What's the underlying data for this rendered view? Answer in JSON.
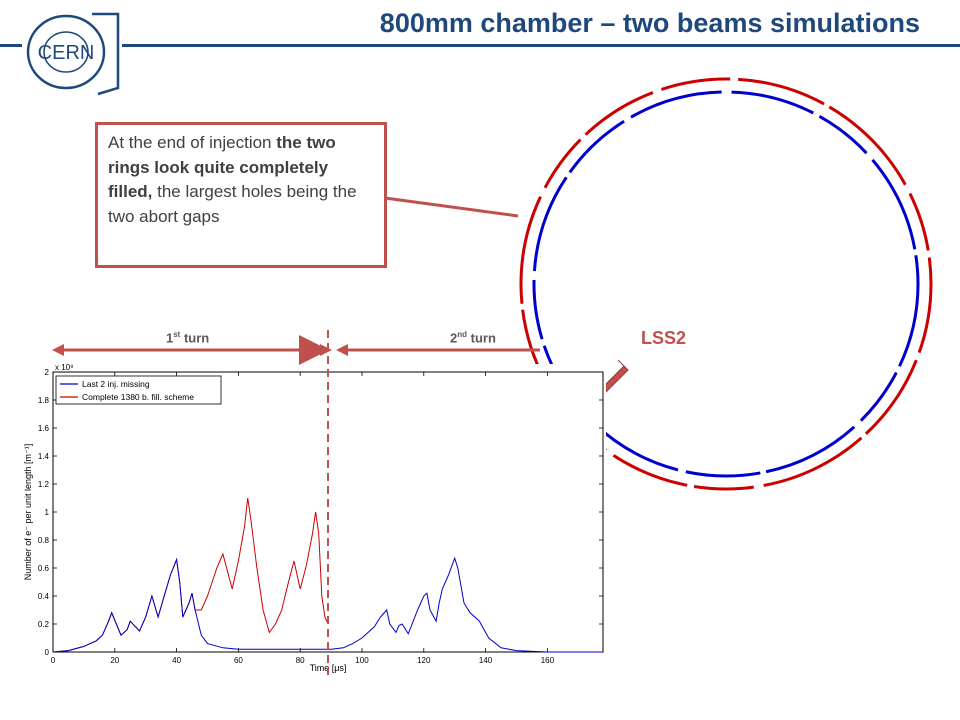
{
  "slide": {
    "title": "800mm chamber – two beams simulations",
    "logo_text": "CERN"
  },
  "callout": {
    "part1": "At the end of injection ",
    "part2": "the two rings look quite completely filled,",
    "part3": " the largest holes being the two abort gaps"
  },
  "annotations": {
    "turn1": "1",
    "turn1_sup": "st",
    "turn1_rest": " turn",
    "turn2": "2",
    "turn2_sup": "nd",
    "turn2_rest": " turn",
    "lss2": "LSS2"
  },
  "colors": {
    "title": "#1F497D",
    "accent_red": "#C0504D",
    "series_blue": "#0000CC",
    "series_red": "#CC0000"
  },
  "chart_data": {
    "type": "line",
    "xlabel": "Time [μs]",
    "ylabel": "Number of e⁻ per unit length [m⁻¹]",
    "y_multiplier": "x 10⁹",
    "xlim": [
      0,
      178
    ],
    "ylim": [
      0,
      2
    ],
    "x_ticks": [
      0,
      20,
      40,
      60,
      80,
      100,
      120,
      140,
      160
    ],
    "y_ticks": [
      0,
      0.2,
      0.4,
      0.6,
      0.8,
      1,
      1.2,
      1.4,
      1.6,
      1.8,
      2
    ],
    "legend_position": "top-left",
    "turn_boundary_x": 89,
    "series": [
      {
        "name": "Last 2 inj. missing",
        "color": "#0000CC",
        "x": [
          0,
          5,
          10,
          14,
          16,
          18,
          19,
          22,
          24,
          25,
          28,
          30,
          32,
          34,
          36,
          38,
          40,
          41,
          42,
          44,
          45,
          46,
          48,
          50,
          55,
          60,
          70,
          80,
          85,
          90,
          94,
          97,
          100,
          104,
          106,
          108,
          109,
          111,
          112,
          113,
          115,
          118,
          120,
          121,
          122,
          124,
          125,
          126,
          128,
          130,
          131,
          133,
          135,
          138,
          141,
          145,
          150,
          160,
          170,
          178
        ],
        "y": [
          0,
          0.01,
          0.04,
          0.08,
          0.12,
          0.22,
          0.28,
          0.12,
          0.16,
          0.22,
          0.15,
          0.25,
          0.4,
          0.25,
          0.4,
          0.55,
          0.66,
          0.5,
          0.25,
          0.35,
          0.42,
          0.3,
          0.12,
          0.06,
          0.03,
          0.02,
          0.02,
          0.02,
          0.02,
          0.02,
          0.03,
          0.06,
          0.1,
          0.18,
          0.25,
          0.3,
          0.2,
          0.14,
          0.19,
          0.2,
          0.13,
          0.3,
          0.4,
          0.42,
          0.3,
          0.22,
          0.35,
          0.45,
          0.55,
          0.67,
          0.6,
          0.35,
          0.28,
          0.22,
          0.1,
          0.03,
          0.01,
          0.0,
          0.0,
          0.0
        ]
      },
      {
        "name": "Complete 1380 b. fill. scheme",
        "color": "#CC0000",
        "x": [
          0,
          5,
          10,
          14,
          16,
          18,
          19,
          22,
          24,
          25,
          28,
          30,
          32,
          34,
          36,
          38,
          40,
          41,
          42,
          44,
          45,
          46,
          48,
          50,
          53,
          55,
          58,
          60,
          62,
          63,
          64,
          66,
          68,
          70,
          72,
          74,
          76,
          78,
          80,
          82,
          84,
          85,
          86,
          87,
          88,
          89
        ],
        "y": [
          0,
          0.01,
          0.04,
          0.08,
          0.12,
          0.22,
          0.28,
          0.12,
          0.16,
          0.22,
          0.15,
          0.25,
          0.4,
          0.25,
          0.4,
          0.55,
          0.66,
          0.5,
          0.25,
          0.35,
          0.42,
          0.3,
          0.3,
          0.4,
          0.6,
          0.7,
          0.45,
          0.65,
          0.9,
          1.1,
          0.95,
          0.6,
          0.3,
          0.14,
          0.2,
          0.3,
          0.48,
          0.65,
          0.45,
          0.62,
          0.85,
          1.0,
          0.85,
          0.4,
          0.25,
          0.2
        ]
      }
    ]
  }
}
